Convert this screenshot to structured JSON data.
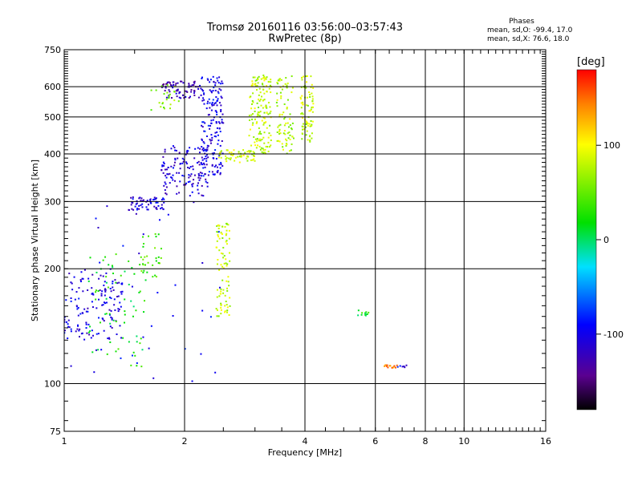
{
  "header": {
    "title_line1": "Tromsø 20160116 03:56:00–03:57:43",
    "title_line2": "RwPretec (8p)"
  },
  "stats": {
    "heading": "Phases",
    "line_o": "mean, sd,O: -99.4, 17.0",
    "line_x": "mean, sd,X:  76.6, 18.0"
  },
  "colorbar": {
    "unit_label": "[deg]",
    "ticks": [
      "100",
      "0",
      "-100"
    ],
    "range": [
      -180,
      180
    ]
  },
  "chart_data": {
    "type": "scatter",
    "xlabel": "Frequency [MHz]",
    "ylabel": "Stationary phase Virtual Height [km]",
    "xscale": "log",
    "yscale": "log",
    "xlim": [
      1,
      16
    ],
    "ylim": [
      75,
      750
    ],
    "xtick_labels": [
      "1",
      "2",
      "4",
      "6",
      "8",
      "10",
      "16"
    ],
    "ytick_labels": [
      "750",
      "600",
      "500",
      "400",
      "300",
      "200",
      "100",
      "75"
    ],
    "grid": true,
    "color_encodes": "phase [deg]",
    "clusters": [
      {
        "x": [
          1.0,
          1.4
        ],
        "y": [
          130,
          200
        ],
        "phase": -105,
        "n": 140
      },
      {
        "x": [
          1.15,
          1.6
        ],
        "y": [
          110,
          220
        ],
        "phase": 20,
        "n": 70
      },
      {
        "x": [
          1.45,
          1.8
        ],
        "y": [
          285,
          310
        ],
        "phase": -105,
        "n": 60
      },
      {
        "x": [
          1.75,
          2.3
        ],
        "y": [
          310,
          420
        ],
        "phase": -110,
        "n": 130
      },
      {
        "x": [
          1.75,
          2.2
        ],
        "y": [
          560,
          620
        ],
        "phase": -125,
        "n": 80
      },
      {
        "x": [
          1.65,
          1.95
        ],
        "y": [
          520,
          610
        ],
        "phase": 60,
        "n": 25
      },
      {
        "x": [
          1.55,
          1.75
        ],
        "y": [
          190,
          250
        ],
        "phase": 40,
        "n": 30
      },
      {
        "x": [
          2.2,
          2.5
        ],
        "y": [
          350,
          640
        ],
        "phase": -100,
        "n": 170
      },
      {
        "x": [
          2.4,
          2.6
        ],
        "y": [
          150,
          265
        ],
        "phase": 80,
        "n": 90
      },
      {
        "x": [
          2.4,
          3.0
        ],
        "y": [
          380,
          410
        ],
        "phase": 85,
        "n": 60
      },
      {
        "x": [
          2.9,
          3.3
        ],
        "y": [
          400,
          645
        ],
        "phase": 80,
        "n": 150
      },
      {
        "x": [
          3.4,
          3.75
        ],
        "y": [
          400,
          640
        ],
        "phase": 75,
        "n": 80
      },
      {
        "x": [
          3.9,
          4.2
        ],
        "y": [
          430,
          640
        ],
        "phase": 80,
        "n": 80
      },
      {
        "x": [
          5.4,
          5.8
        ],
        "y": [
          150,
          156
        ],
        "phase": 20,
        "n": 12
      },
      {
        "x": [
          6.3,
          6.8
        ],
        "y": [
          110,
          112
        ],
        "phase": 140,
        "n": 14
      },
      {
        "x": [
          6.8,
          7.2
        ],
        "y": [
          110,
          112
        ],
        "phase": -100,
        "n": 6
      },
      {
        "x": [
          1.0,
          2.5
        ],
        "y": [
          100,
          300
        ],
        "phase": -100,
        "n": 40
      }
    ]
  }
}
